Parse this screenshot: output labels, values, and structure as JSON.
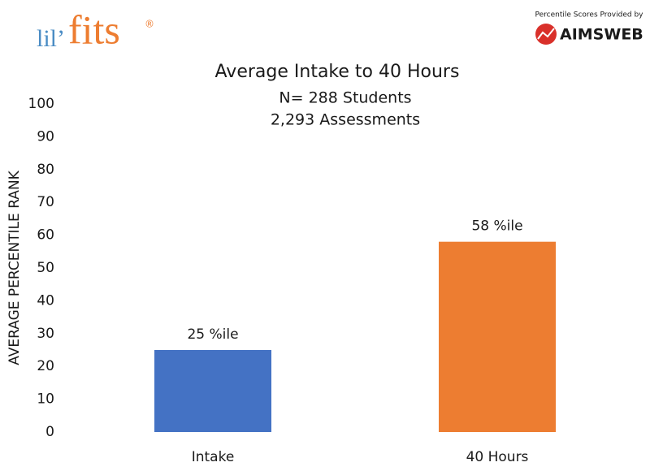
{
  "header": {
    "brand": [
      "lil’",
      "fits"
    ],
    "registered": "®",
    "provider_note": "Percentile Scores Provided by",
    "provider": "AIMSWEB"
  },
  "chart_data": {
    "type": "bar",
    "title": "Average Intake to 40 Hours",
    "subtitle": [
      "N= 288 Students",
      "2,293 Assessments"
    ],
    "y_label": "AVERAGE PERCENTILE RANK",
    "categories": [
      "Intake",
      "40 Hours"
    ],
    "values": [
      25,
      58
    ],
    "value_labels": [
      "25 %ile",
      "58 %ile"
    ],
    "colors": [
      "#4472c4",
      "#ed7d31"
    ],
    "ylim": [
      0,
      100
    ],
    "yticks": [
      0,
      10,
      20,
      30,
      40,
      50,
      60,
      70,
      80,
      90,
      100
    ],
    "grid": false
  }
}
